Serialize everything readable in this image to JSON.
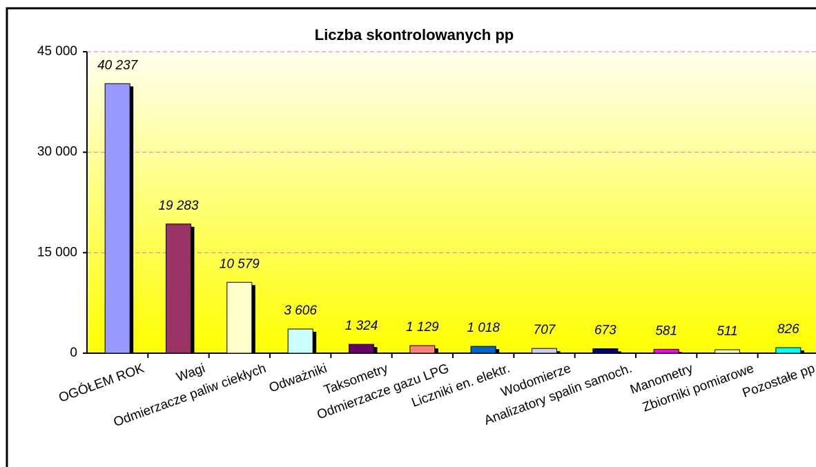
{
  "chart_data": {
    "type": "bar",
    "title": "Liczba skontrolowanych pp",
    "categories": [
      "OGÓŁEM ROK",
      "Wagi",
      "Odmierzacze paliw ciekłych",
      "Odważniki",
      "Taksometry",
      "Odmierzacze gazu LPG",
      "Liczniki en. elektr.",
      "Wodomierze",
      "Analizatory spalin samoch.",
      "Manometry",
      "Zbiorniki pomiarowe",
      "Pozostałe pp"
    ],
    "values": [
      40237,
      19283,
      10579,
      3606,
      1324,
      1129,
      1018,
      707,
      673,
      581,
      511,
      826
    ],
    "value_labels": [
      "40 237",
      "19 283",
      "10 579",
      "3 606",
      "1 324",
      "1 129",
      "1 018",
      "707",
      "673",
      "581",
      "511",
      "826"
    ],
    "colors": [
      "#9999ff",
      "#993366",
      "#ffffcc",
      "#ccffff",
      "#660066",
      "#ff8080",
      "#0066cc",
      "#ccccff",
      "#000080",
      "#ff00ff",
      "#ffffcc",
      "#00ffff"
    ],
    "ylim": [
      0,
      45000
    ],
    "yticks": [
      0,
      {
        "value": 15000,
        "label": "15 000"
      },
      {
        "value": 30000,
        "label": "30 000"
      },
      {
        "value": 45000,
        "label": "45 000"
      }
    ],
    "grid": true
  }
}
